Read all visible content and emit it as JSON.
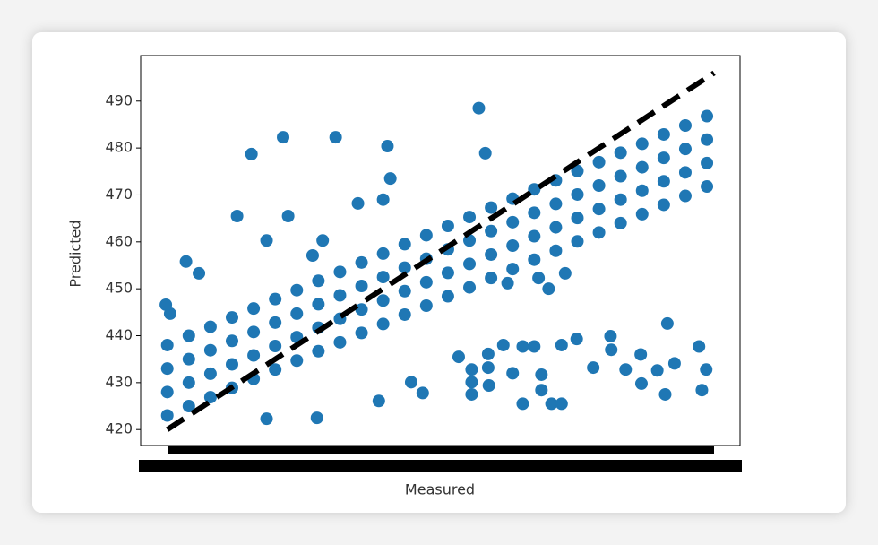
{
  "chart_data": {
    "type": "scatter",
    "x_label": "Measured",
    "y_label": "Predicted",
    "xlim": [
      416.3,
      499.6
    ],
    "ylim": [
      416.6,
      499.7
    ],
    "yticks": [
      420,
      430,
      440,
      450,
      460,
      470,
      480,
      490
    ],
    "color": "#1f77b4",
    "x": [
      420,
      420,
      420,
      420,
      423,
      423,
      423,
      423,
      426,
      426,
      426,
      426,
      429,
      429,
      429,
      429,
      432,
      432,
      432,
      432,
      435,
      435,
      435,
      435,
      438,
      438,
      438,
      438,
      441,
      441,
      441,
      441,
      444,
      444,
      444,
      444,
      447,
      447,
      447,
      447,
      450,
      450,
      450,
      450,
      453,
      453,
      453,
      453,
      456,
      456,
      456,
      456,
      459,
      459,
      459,
      459,
      462,
      462,
      462,
      462,
      465,
      465,
      465,
      465,
      468,
      468,
      468,
      468,
      471,
      471,
      471,
      471,
      474,
      474,
      474,
      474,
      477,
      477,
      477,
      477,
      480,
      480,
      480,
      480,
      483,
      483,
      483,
      483,
      486,
      486,
      486,
      486,
      489,
      489,
      489,
      489,
      492,
      492,
      492,
      492,
      495,
      495,
      495,
      495,
      419.8,
      420.4,
      422.6,
      424.4,
      429.7,
      431.7,
      433.8,
      436.1,
      436.8,
      440.2,
      441.6,
      443.4,
      446.5,
      450,
      450.6,
      451,
      463.3,
      464.2,
      467.3,
      471.6,
      473,
      475.3,
      460.5,
      462.3,
      464.6,
      464.6,
      462.3,
      462.3,
      464.7,
      466.7,
      468,
      469.4,
      469.4,
      471,
      472,
      472,
      473.4,
      474.8,
      474.8,
      476.9,
      479.2,
      481.6,
      481.7,
      483.7,
      485.8,
      485.9,
      489.5,
      490.5,
      489.2,
      493.9,
      494.9,
      494.3,
      488.1,
      455.5,
      453.9,
      449.4,
      440.8,
      433.8
    ],
    "y": [
      423,
      428,
      433,
      438,
      425,
      430,
      435,
      440,
      426.9,
      431.9,
      436.9,
      441.9,
      428.9,
      433.9,
      438.9,
      443.9,
      430.8,
      435.8,
      440.8,
      445.8,
      432.8,
      437.8,
      442.8,
      447.8,
      434.7,
      439.7,
      444.7,
      449.7,
      436.7,
      441.7,
      446.7,
      451.7,
      438.6,
      443.6,
      448.6,
      453.6,
      440.6,
      445.6,
      450.6,
      455.6,
      442.5,
      447.5,
      452.5,
      457.5,
      444.5,
      449.5,
      454.5,
      459.5,
      446.4,
      451.4,
      456.4,
      461.4,
      448.4,
      453.4,
      458.4,
      463.4,
      450.3,
      455.3,
      460.3,
      465.3,
      452.3,
      457.3,
      462.3,
      467.3,
      454.2,
      459.2,
      464.2,
      469.2,
      456.2,
      461.2,
      466.2,
      471.2,
      458.1,
      463.1,
      468.1,
      473.1,
      460.1,
      465.1,
      470.1,
      475.1,
      462,
      467,
      472,
      477,
      464,
      469,
      474,
      479,
      465.9,
      470.9,
      475.9,
      480.9,
      467.9,
      472.9,
      477.9,
      482.9,
      469.8,
      474.8,
      479.8,
      484.8,
      471.8,
      476.8,
      481.8,
      486.8,
      446.6,
      444.7,
      455.8,
      453.3,
      465.5,
      478.7,
      460.3,
      482.3,
      465.5,
      457.1,
      460.3,
      482.3,
      468.2,
      469,
      480.4,
      473.5,
      488.5,
      478.9,
      451.2,
      452.3,
      450,
      453.3,
      435.5,
      432.8,
      436.1,
      433.2,
      430.1,
      427.5,
      429.4,
      438,
      432,
      437.7,
      425.5,
      437.7,
      431.7,
      428.4,
      425.5,
      438,
      425.5,
      439.3,
      433.2,
      439.9,
      437,
      432.8,
      436,
      429.8,
      442.6,
      434.1,
      427.5,
      437.7,
      432.8,
      428.4,
      432.6,
      427.8,
      430.1,
      426.1,
      422.5,
      422.3
    ],
    "diagonal": {
      "x": [
        420,
        496
      ],
      "y": [
        420,
        496
      ],
      "color": "#000000"
    }
  }
}
